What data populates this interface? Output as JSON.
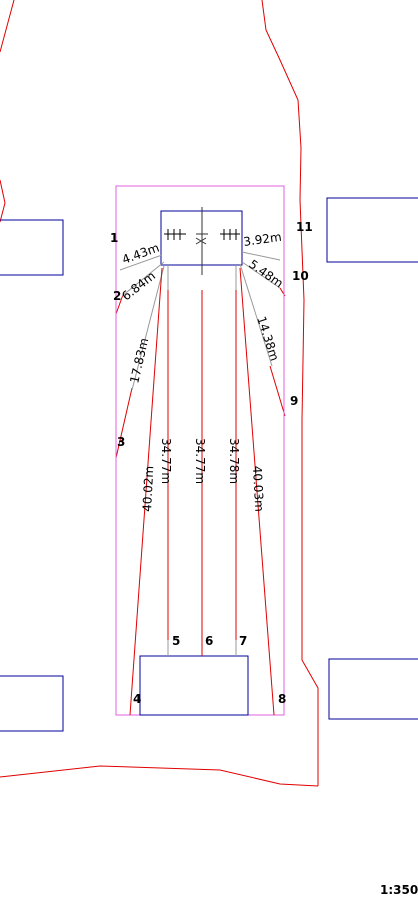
{
  "scale": "1:350",
  "point_labels": [
    "1",
    "2",
    "3",
    "4",
    "5",
    "6",
    "7",
    "8",
    "9",
    "10",
    "11"
  ],
  "dimensions": {
    "d1": "4.43m",
    "d2": "6.84m",
    "d3": "17.83m",
    "d4": "40.02m",
    "d5": "34.77m",
    "d6": "34.77m",
    "d7": "34.78m",
    "d8": "40.03m",
    "d9": "14.38m",
    "d10": "5.48m",
    "d11": "3.92m"
  },
  "colors": {
    "boundary": "#e00000",
    "building": "#000099",
    "plot": "#e060e0",
    "measure": "#999999",
    "text": "#000000"
  }
}
